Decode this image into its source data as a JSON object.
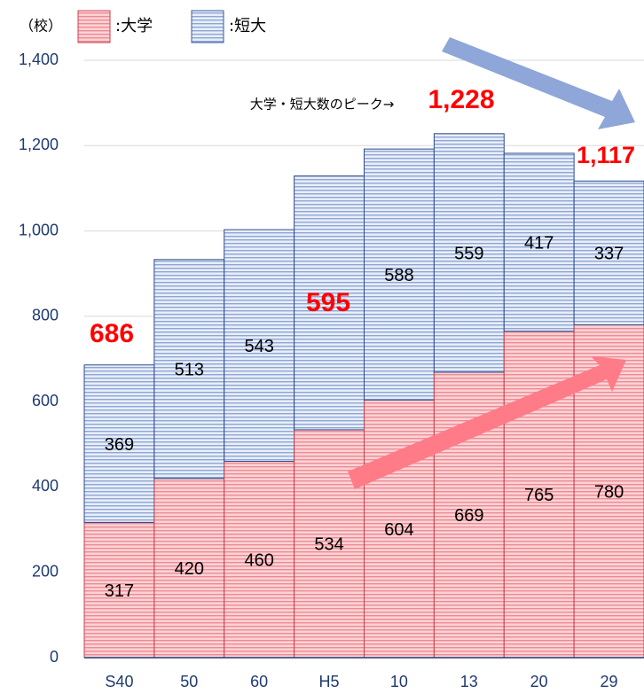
{
  "chart_data": {
    "type": "stacked_bar",
    "unit": "（校）",
    "categories": [
      "S40",
      "50",
      "60",
      "H5",
      "10",
      "13",
      "20",
      "29"
    ],
    "series": [
      {
        "name": ":大学",
        "color": "#f4a3a9",
        "values": [
          317,
          420,
          460,
          534,
          604,
          669,
          765,
          780
        ]
      },
      {
        "name": ":短大",
        "color": "#b9c9e6",
        "values": [
          369,
          513,
          543,
          595,
          588,
          559,
          417,
          337
        ],
        "value_labels": [
          "369",
          "513",
          "543",
          null,
          "588",
          "559",
          "417",
          "337"
        ]
      }
    ],
    "ylim": [
      0,
      1400
    ],
    "yticks": [
      0,
      200,
      400,
      600,
      800,
      {
        "value": 1000,
        "label": "1,000"
      },
      {
        "value": 1200,
        "label": "1,200"
      },
      {
        "value": 1400,
        "label": "1,400"
      }
    ],
    "grid": true,
    "annotations": [
      {
        "text": "686"
      },
      {
        "text": "595"
      },
      {
        "text": "大学・短大数のピーク→"
      },
      {
        "text": "1,228"
      },
      {
        "text": "1,117"
      }
    ]
  }
}
